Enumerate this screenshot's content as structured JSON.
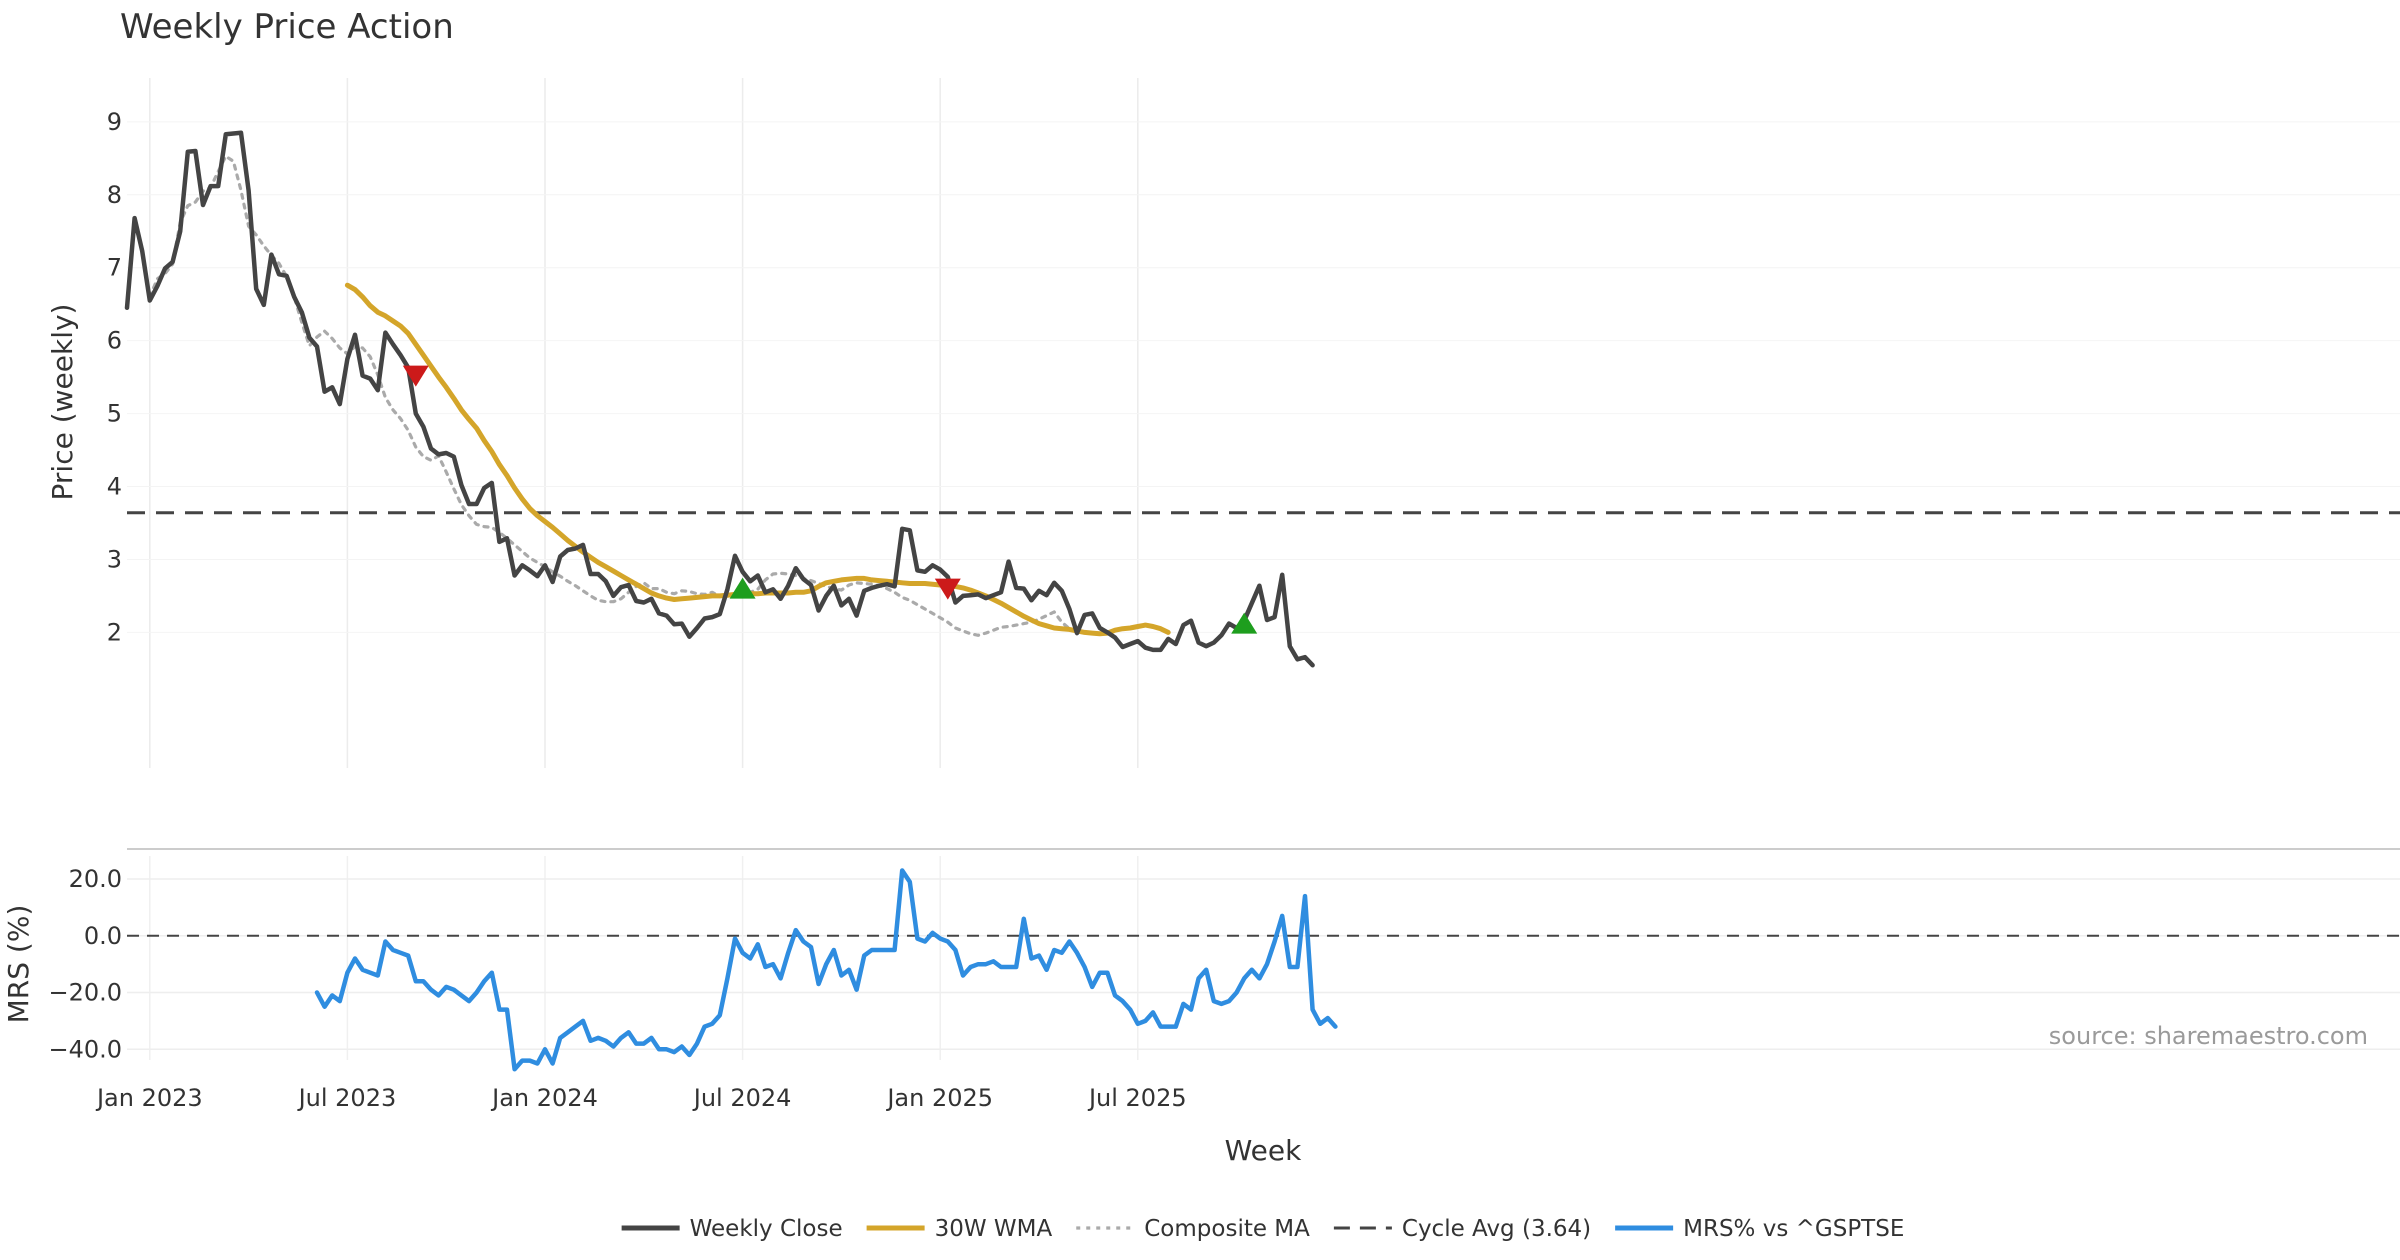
{
  "chart_data": {
    "type": "line",
    "title": "Weekly Price Action",
    "xlabel": "Week",
    "source": "source: sharemaestro.com",
    "x_ticks": [
      "Jan 2023",
      "Jul 2023",
      "Jan 2024",
      "Jul 2024",
      "Jan 2025",
      "Jul 2025"
    ],
    "x_tick_index": [
      3,
      29,
      55,
      81,
      107,
      133
    ],
    "n_weeks": 156,
    "price_panel": {
      "ylabel": "Price (weekly)",
      "yticks": [
        "2",
        "3",
        "4",
        "5",
        "6",
        "7",
        "8",
        "9"
      ],
      "ylim": [
        1.1,
        9.3
      ],
      "cycle_avg": 3.64,
      "series": [
        {
          "name": "Weekly Close",
          "color": "#444444",
          "style": "solid",
          "start": 0,
          "values": [
            6.45,
            7.68,
            7.23,
            6.55,
            6.75,
            6.99,
            7.08,
            7.5,
            8.59,
            8.6,
            7.86,
            8.12,
            8.12,
            8.83,
            8.84,
            8.85,
            8.06,
            6.71,
            6.49,
            7.18,
            6.91,
            6.89,
            6.6,
            6.39,
            6.04,
            5.92,
            5.3,
            5.36,
            5.13,
            5.75,
            6.08,
            5.52,
            5.48,
            5.32,
            6.11,
            5.95,
            5.8,
            5.63,
            5.0,
            4.82,
            4.52,
            4.44,
            4.46,
            4.41,
            4.02,
            3.76,
            3.76,
            3.98,
            4.05,
            3.24,
            3.29,
            2.78,
            2.92,
            2.85,
            2.77,
            2.92,
            2.69,
            3.04,
            3.13,
            3.15,
            3.2,
            2.8,
            2.8,
            2.7,
            2.5,
            2.62,
            2.65,
            2.43,
            2.41,
            2.46,
            2.26,
            2.23,
            2.11,
            2.12,
            1.94,
            2.06,
            2.19,
            2.21,
            2.25,
            2.59,
            3.05,
            2.83,
            2.7,
            2.78,
            2.55,
            2.59,
            2.46,
            2.64,
            2.88,
            2.73,
            2.65,
            2.3,
            2.5,
            2.64,
            2.37,
            2.46,
            2.23,
            2.57,
            2.61,
            2.64,
            2.66,
            2.63,
            3.42,
            3.4,
            2.85,
            2.83,
            2.92,
            2.86,
            2.76,
            2.41,
            2.5,
            2.51,
            2.52,
            2.47,
            2.51,
            2.55,
            2.97,
            2.61,
            2.6,
            2.44,
            2.57,
            2.51,
            2.68,
            2.57,
            2.32,
            1.99,
            2.24,
            2.26,
            2.06,
            2.0,
            1.93,
            1.8,
            1.84,
            1.88,
            1.79,
            1.76,
            1.76,
            1.91,
            1.84,
            2.1,
            2.16,
            1.86,
            1.81,
            1.86,
            1.96,
            2.12,
            2.06,
            2.16,
            2.4,
            2.64,
            2.17,
            2.21,
            2.79,
            1.81,
            1.63,
            1.66,
            1.55
          ]
        },
        {
          "name": "30W WMA",
          "color": "#d4a52a",
          "style": "solid",
          "start": 29,
          "values": [
            6.76,
            6.7,
            6.6,
            6.48,
            6.39,
            6.34,
            6.27,
            6.2,
            6.1,
            5.95,
            5.8,
            5.65,
            5.5,
            5.36,
            5.21,
            5.05,
            4.92,
            4.8,
            4.63,
            4.48,
            4.3,
            4.15,
            3.98,
            3.83,
            3.7,
            3.6,
            3.52,
            3.44,
            3.35,
            3.26,
            3.18,
            3.1,
            3.03,
            2.96,
            2.9,
            2.84,
            2.78,
            2.72,
            2.66,
            2.6,
            2.54,
            2.5,
            2.47,
            2.45,
            2.46,
            2.47,
            2.48,
            2.49,
            2.5,
            2.5,
            2.51,
            2.52,
            2.53,
            2.53,
            2.53,
            2.54,
            2.54,
            2.54,
            2.54,
            2.55,
            2.55,
            2.57,
            2.63,
            2.68,
            2.7,
            2.72,
            2.73,
            2.74,
            2.74,
            2.72,
            2.71,
            2.7,
            2.69,
            2.68,
            2.67,
            2.67,
            2.67,
            2.66,
            2.65,
            2.64,
            2.63,
            2.61,
            2.58,
            2.54,
            2.5,
            2.45,
            2.4,
            2.34,
            2.28,
            2.22,
            2.17,
            2.12,
            2.09,
            2.06,
            2.05,
            2.04,
            2.02,
            2.0,
            1.99,
            1.98,
            1.99,
            2.03,
            2.05,
            2.06,
            2.08,
            2.1,
            2.08,
            2.05,
            2.0
          ]
        },
        {
          "name": "Composite MA",
          "color": "#aaaaaa",
          "style": "dotted",
          "start": 3,
          "values": [
            6.6,
            6.85,
            6.92,
            7.05,
            7.62,
            7.85,
            7.9,
            8.05,
            8.1,
            8.32,
            8.53,
            8.46,
            8.06,
            7.57,
            7.45,
            7.3,
            7.17,
            7.06,
            6.88,
            6.6,
            6.25,
            5.93,
            6.05,
            6.13,
            6.03,
            5.9,
            5.82,
            5.92,
            5.9,
            5.78,
            5.53,
            5.22,
            5.05,
            4.93,
            4.77,
            4.54,
            4.41,
            4.36,
            4.42,
            4.2,
            3.97,
            3.75,
            3.6,
            3.48,
            3.45,
            3.44,
            3.37,
            3.29,
            3.2,
            3.11,
            3.02,
            2.96,
            2.9,
            2.83,
            2.77,
            2.7,
            2.64,
            2.57,
            2.5,
            2.44,
            2.42,
            2.42,
            2.46,
            2.55,
            2.63,
            2.68,
            2.6,
            2.6,
            2.55,
            2.53,
            2.57,
            2.56,
            2.53,
            2.52,
            2.55,
            2.49,
            2.5,
            2.53,
            2.51,
            2.55,
            2.59,
            2.72,
            2.8,
            2.81,
            2.8,
            2.78,
            2.74,
            2.71,
            2.67,
            2.63,
            2.6,
            2.58,
            2.65,
            2.68,
            2.67,
            2.66,
            2.64,
            2.6,
            2.55,
            2.48,
            2.44,
            2.38,
            2.32,
            2.26,
            2.2,
            2.14,
            2.06,
            2.02,
            1.98,
            1.96,
            1.99,
            2.03,
            2.07,
            2.08,
            2.1,
            2.12,
            2.14,
            2.18,
            2.23,
            2.28,
            2.14,
            2.05,
            2.03
          ]
        }
      ],
      "markers": [
        {
          "type": "sell",
          "index": 38,
          "value": 5.52,
          "color": "#cc1a1a"
        },
        {
          "type": "buy",
          "index": 81,
          "value": 2.6,
          "color": "#1e9e1e"
        },
        {
          "type": "sell",
          "index": 108,
          "value": 2.6,
          "color": "#cc1a1a"
        },
        {
          "type": "buy",
          "index": 147,
          "value": 2.12,
          "color": "#1e9e1e"
        }
      ]
    },
    "mrs_panel": {
      "ylabel": "MRS (%)",
      "yticks": [
        "20.0",
        "0.0",
        "−20.0",
        "−40.0"
      ],
      "ytick_values": [
        20,
        0,
        -20,
        -40
      ],
      "ylim": [
        -48,
        26
      ],
      "series": {
        "name": "MRS% vs ^GSPTSE",
        "color": "#2f8de0",
        "start": 25,
        "values": [
          -20,
          -25,
          -21,
          -23,
          -13,
          -8,
          -12,
          -13,
          -14,
          -2,
          -5,
          -6,
          -7,
          -16,
          -16,
          -19,
          -21,
          -18,
          -19,
          -21,
          -23,
          -20,
          -16,
          -13,
          -26,
          -26,
          -47,
          -44,
          -44,
          -45,
          -40,
          -45,
          -36,
          -34,
          -32,
          -30,
          -37,
          -36,
          -37,
          -39,
          -36,
          -34,
          -38,
          -38,
          -36,
          -40,
          -40,
          -41,
          -39,
          -42,
          -38,
          -32,
          -31,
          -28,
          -15,
          -1,
          -6,
          -8,
          -3,
          -11,
          -10,
          -15,
          -6,
          2,
          -2,
          -4,
          -17,
          -10,
          -5,
          -14,
          -12,
          -19,
          -7,
          -5,
          -5,
          -5,
          -5,
          23,
          19,
          -1,
          -2,
          1,
          -1,
          -2,
          -5,
          -14,
          -11,
          -10,
          -10,
          -9,
          -11,
          -11,
          -11,
          6,
          -8,
          -7,
          -12,
          -5,
          -6,
          -2,
          -6,
          -11,
          -18,
          -13,
          -13,
          -21,
          -23,
          -26,
          -31,
          -30,
          -27,
          -32,
          -32,
          -32,
          -24,
          -26,
          -15,
          -12,
          -23,
          -24,
          -23,
          -20,
          -15,
          -12,
          -15,
          -10,
          -2,
          7,
          -11,
          -11,
          14,
          -26,
          -31,
          -29,
          -32
        ]
      }
    },
    "legend": {
      "placement": "bottom-center",
      "items": [
        {
          "label": "Weekly Close",
          "color": "#444444",
          "style": "solid"
        },
        {
          "label": "30W WMA",
          "color": "#d4a52a",
          "style": "solid"
        },
        {
          "label": "Composite MA",
          "color": "#aaaaaa",
          "style": "dotted"
        },
        {
          "label": "Cycle Avg (3.64)",
          "color": "#444444",
          "style": "dashed"
        },
        {
          "label": "MRS% vs ^GSPTSE",
          "color": "#2f8de0",
          "style": "solid"
        }
      ]
    }
  }
}
